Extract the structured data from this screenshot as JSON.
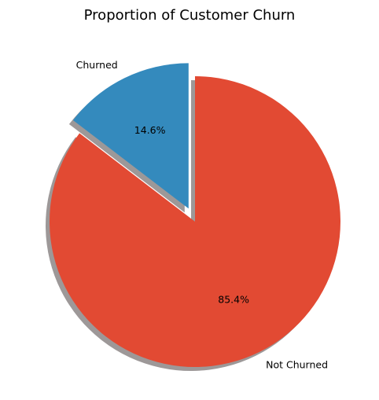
{
  "chart_data": {
    "type": "pie",
    "title": "Proportion of Customer Churn",
    "slices": [
      {
        "label": "Churned",
        "value": 14.6,
        "pct_label": "14.6%",
        "color": "#348abd",
        "exploded": true
      },
      {
        "label": "Not Churned",
        "value": 85.4,
        "pct_label": "85.4%",
        "color": "#e24a33",
        "exploded": false
      }
    ],
    "shadow": true,
    "start_angle_deg": 90,
    "legend": "none"
  }
}
